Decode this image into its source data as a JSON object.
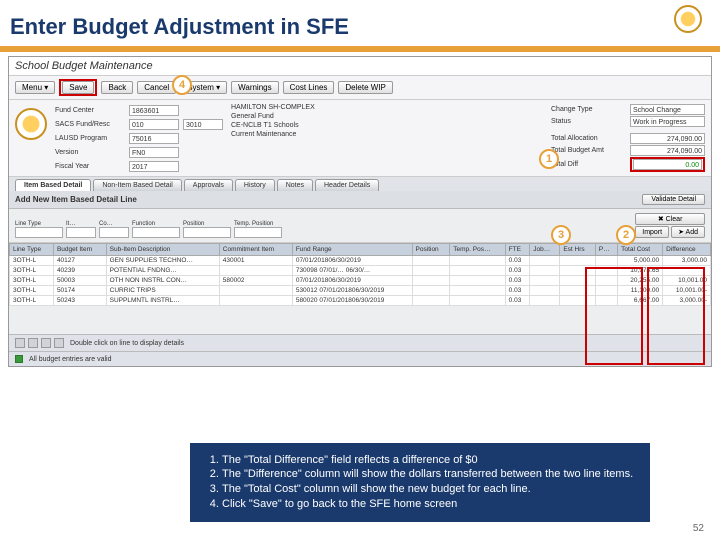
{
  "slide": {
    "title": "Enter Budget Adjustment in SFE",
    "page_num": "52"
  },
  "app": {
    "title": "School Budget Maintenance"
  },
  "toolbar": {
    "menu": "Menu ▾",
    "save": "Save",
    "back": "Back",
    "cancel": "Cancel",
    "system": "System ▾",
    "warnings": "Warnings",
    "cost_lines": "Cost Lines",
    "delete_wip": "Delete WIP"
  },
  "header": {
    "fund_center_lbl": "Fund Center",
    "fund_center": "1863601",
    "sacs_lbl": "SACS Fund/Resc",
    "sacs1": "010",
    "sacs2": "3010",
    "lausd_lbl": "LAUSD Program",
    "lausd": "75016",
    "version_lbl": "Version",
    "version": "FN0",
    "fy_lbl": "Fiscal Year",
    "fy": "2017",
    "school": "HAMILTON SH-COMPLEX",
    "fund_name": "General Fund",
    "program_name": "CE-NCLB T1 Schools",
    "maint": "Current Maintenance",
    "change_type_lbl": "Change Type",
    "change_type": "School Change",
    "status_lbl": "Status",
    "status": "Work in Progress",
    "alloc_lbl": "Total Allocation",
    "alloc": "274,090.00",
    "budget_lbl": "Total Budget Amt",
    "budget": "274,090.00",
    "diff_lbl": "Total Diff",
    "diff": "0.00"
  },
  "tabs": {
    "t1": "Item Based Detail",
    "t2": "Non-Item Based Detail",
    "t3": "Approvals",
    "t4": "History",
    "t5": "Notes",
    "t6": "Header Details"
  },
  "subbar": {
    "add_title": "Add New Item Based Detail Line",
    "validate": "Validate Detail"
  },
  "add": {
    "line_type": "Line Type",
    "item": "It…",
    "co": "Co…",
    "function": "Function",
    "position": "Position",
    "temp": "Temp. Position",
    "clear": "✖ Clear",
    "add": "➤ Add",
    "import": "Import"
  },
  "grid": {
    "cols": [
      "Line Type",
      "Budget Item",
      "Sub-Item Description",
      "Commitment Item",
      "Fund Range",
      "Position",
      "Temp. Pos…",
      "FTE",
      "Job…",
      "Est Hrs",
      "P…",
      "Total Cost",
      "Difference"
    ],
    "rows": [
      [
        "3OTH-L",
        "40127",
        "GEN SUPPLIES TECHNO…",
        "430001",
        "07/01/201806/30/2019",
        "",
        "",
        "0.03",
        "",
        "",
        "",
        "5,000.00",
        "3,000.00"
      ],
      [
        "3OTH-L",
        "40239",
        "POTENTIAL FNDNG…",
        "",
        "730098 07/01/… 06/30/…",
        "",
        "",
        "0.03",
        "",
        "",
        "",
        "10,973.65",
        ""
      ],
      [
        "3OTH-L",
        "50003",
        "OTH NON INSTRL CON…",
        "580002",
        "07/01/201806/30/2019",
        "",
        "",
        "0.03",
        "",
        "",
        "",
        "20,255.00",
        "10,001.00"
      ],
      [
        "3OTH-L",
        "50174",
        "CURRIC TRIPS",
        "",
        "530012 07/01/201806/30/2019",
        "",
        "",
        "0.03",
        "",
        "",
        "",
        "11,100.00",
        "10,001.00-"
      ],
      [
        "3OTH-L",
        "50243",
        "SUPPLMNTL INSTRL…",
        "",
        "580020 07/01/201806/30/2019",
        "",
        "",
        "0.03",
        "",
        "",
        "",
        "6,667.00",
        "3,000.00-"
      ]
    ]
  },
  "footer": {
    "hint": "Double click on line to display details",
    "valid": "All budget entries are valid"
  },
  "callouts": {
    "c1": "1",
    "c2": "2",
    "c3": "3",
    "c4": "4"
  },
  "instructions": {
    "i1": "The \"Total Difference\" field reflects a difference of $0",
    "i2": "The \"Difference\" column will show the dollars transferred between the two line items.",
    "i3": "The \"Total Cost\" column will show the new budget for each line.",
    "i4": "Click \"Save\" to go back to the SFE home screen"
  },
  "colors": {
    "accent": "#e8a038",
    "title": "#1a3a6e",
    "red": "#cc0000"
  }
}
